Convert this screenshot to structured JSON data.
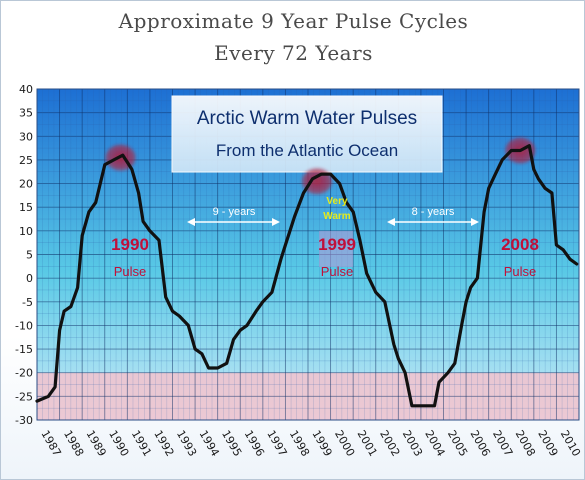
{
  "chart_data": {
    "type": "line",
    "title_line1": "Approximate 9 Year Pulse Cycles",
    "title_line2": "Every 72 Years",
    "ylim": [
      -30,
      40
    ],
    "yticks": [
      40,
      35,
      30,
      25,
      20,
      15,
      10,
      5,
      0,
      -5,
      -10,
      -15,
      -20,
      -25,
      -30
    ],
    "xlim": [
      1987,
      2011
    ],
    "xticks": [
      "1987",
      "1988",
      "1989",
      "1990",
      "1991",
      "1992",
      "1993",
      "1994",
      "1995",
      "1996",
      "1997",
      "1998",
      "1999",
      "2000",
      "2001",
      "2002",
      "2003",
      "2004",
      "2005",
      "2006",
      "2007",
      "2008",
      "2009",
      "2010"
    ],
    "series": [
      {
        "color": "#111111",
        "x": [
          1987.0,
          1987.5,
          1987.8,
          1988.0,
          1988.2,
          1988.5,
          1988.8,
          1989.0,
          1989.3,
          1989.6,
          1990.0,
          1990.4,
          1990.8,
          1991.2,
          1991.5,
          1991.7,
          1992.0,
          1992.4,
          1992.7,
          1993.0,
          1993.3,
          1993.7,
          1994.0,
          1994.3,
          1994.6,
          1995.0,
          1995.4,
          1995.7,
          1996.0,
          1996.3,
          1996.7,
          1997.0,
          1997.4,
          1997.8,
          1998.0,
          1998.4,
          1998.8,
          1999.2,
          1999.6,
          2000.0,
          2000.4,
          2000.7,
          2001.0,
          2001.3,
          2001.6,
          2002.0,
          2002.4,
          2002.8,
          2003.0,
          2003.3,
          2003.6,
          2004.0,
          2004.3,
          2004.6,
          2004.8,
          2005.2,
          2005.5,
          2005.8,
          2006.0,
          2006.2,
          2006.5,
          2006.8,
          2007.0,
          2007.3,
          2007.6,
          2008.0,
          2008.4,
          2008.8,
          2009.0,
          2009.2,
          2009.5,
          2009.8,
          2010.0,
          2010.3,
          2010.6,
          2010.9
        ],
        "y": [
          -26,
          -25,
          -23,
          -11,
          -7,
          -6,
          -2,
          9,
          14,
          16,
          24,
          25,
          26,
          23,
          18,
          12,
          10,
          8,
          -4,
          -7,
          -8,
          -10,
          -15,
          -16,
          -19,
          -19,
          -18,
          -13,
          -11,
          -10,
          -7,
          -5,
          -3,
          4,
          7,
          13,
          18,
          21,
          22,
          22,
          20,
          16,
          14,
          8,
          1,
          -3,
          -5,
          -14,
          -17,
          -20,
          -27,
          -27,
          -27,
          -27,
          -22,
          -20,
          -18,
          -10,
          -5,
          -2,
          0,
          14,
          19,
          22,
          25,
          27,
          27,
          28,
          23,
          21,
          19,
          18,
          7,
          6,
          4,
          3
        ]
      }
    ],
    "inset_title_line1": "Arctic Warm Water Pulses",
    "inset_title_line2": "From the Atlantic Ocean",
    "annotations": [
      {
        "year": "1990",
        "label": "Pulse"
      },
      {
        "year": "1999",
        "label": "Pulse"
      },
      {
        "year": "2008",
        "label": "Pulse"
      }
    ],
    "interval_1": "9 - years",
    "interval_2": "8 - years",
    "very_warm": "Very Warm",
    "colors": {
      "plot_top": "#1d6fd3",
      "plot_mid": "#59c9e6",
      "plot_bottom": "#c9eaf7",
      "pink_band": "#efc4cf",
      "peak_year": "#c0103a",
      "pulse_text": "#c0103a",
      "very_warm": "#e5ea1b",
      "arrow": "#ffffff",
      "peak_marker": "#bf2b46"
    }
  }
}
